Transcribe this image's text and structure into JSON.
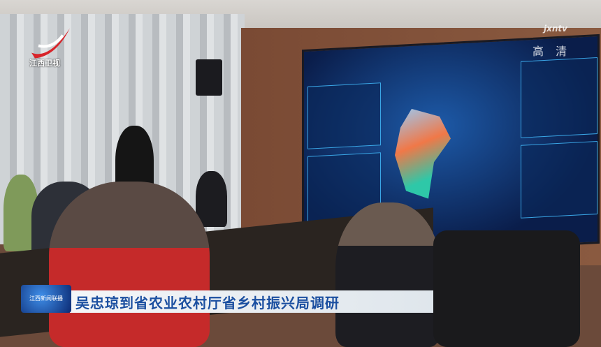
{
  "broadcast": {
    "channel_logo_text": "江西卫视",
    "hd_brand": "jxntv",
    "hd_label": "高 清",
    "caption": "吴忠琼到省农业农村厅省乡村振兴局调研",
    "caption_logo_text": "江西新闻联播"
  },
  "colors": {
    "caption_text": "#1b4fa0",
    "logo_red": "#d8242a",
    "screen_blue": "#1d5aa8"
  }
}
